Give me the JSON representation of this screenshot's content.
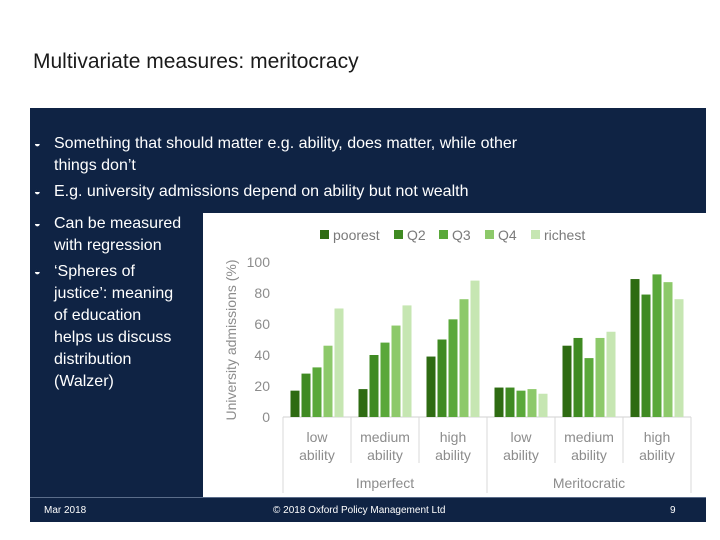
{
  "slide": {
    "title": "Multivariate measures: meritocracy",
    "bullets": [
      "Something that should matter e.g. ability, does matter, while other things don’t",
      "E.g. university admissions depend on ability but not wealth",
      "Can be measured with regression",
      "‘Spheres of justice’: meaning of education helps us discuss distribution (Walzer)"
    ],
    "bullet_lines": [
      [
        "Something that should matter e.g. ability, does matter, while other",
        "things don’t"
      ],
      [
        "E.g. university admissions depend on ability but not wealth"
      ],
      [
        "Can be measured",
        "with regression"
      ],
      [
        "‘Spheres of",
        "justice’: meaning",
        "of education",
        "helps us discuss",
        "distribution",
        "(Walzer)"
      ]
    ],
    "footer": {
      "date": "Mar 2018",
      "copyright": "© 2018 Oxford Policy Management Ltd",
      "page": "9"
    }
  },
  "colors": {
    "panel": "#0f2344",
    "series": [
      "#2e6b12",
      "#3f8a22",
      "#5aa83a",
      "#8dc96a",
      "#c6e6b2"
    ]
  },
  "chart_data": {
    "type": "bar",
    "ylabel": "University admissions (%)",
    "ylim": [
      0,
      100
    ],
    "yticks": [
      "0",
      "20",
      "40",
      "60",
      "80",
      "100"
    ],
    "grid": false,
    "legend_position": "top",
    "series_names": [
      "poorest",
      "Q2",
      "Q3",
      "Q4",
      "richest"
    ],
    "groups": [
      {
        "name": "Imperfect",
        "categories": [
          {
            "label": [
              "low",
              "ability"
            ],
            "values": [
              17,
              28,
              32,
              46,
              70
            ]
          },
          {
            "label": [
              "medium",
              "ability"
            ],
            "values": [
              18,
              40,
              48,
              59,
              72
            ]
          },
          {
            "label": [
              "high",
              "ability"
            ],
            "values": [
              39,
              50,
              63,
              76,
              88
            ]
          }
        ]
      },
      {
        "name": "Meritocratic",
        "categories": [
          {
            "label": [
              "low",
              "ability"
            ],
            "values": [
              19,
              19,
              17,
              18,
              15
            ]
          },
          {
            "label": [
              "medium",
              "ability"
            ],
            "values": [
              46,
              51,
              38,
              51,
              55
            ]
          },
          {
            "label": [
              "high",
              "ability"
            ],
            "values": [
              89,
              79,
              92,
              87,
              76
            ]
          }
        ]
      }
    ]
  }
}
